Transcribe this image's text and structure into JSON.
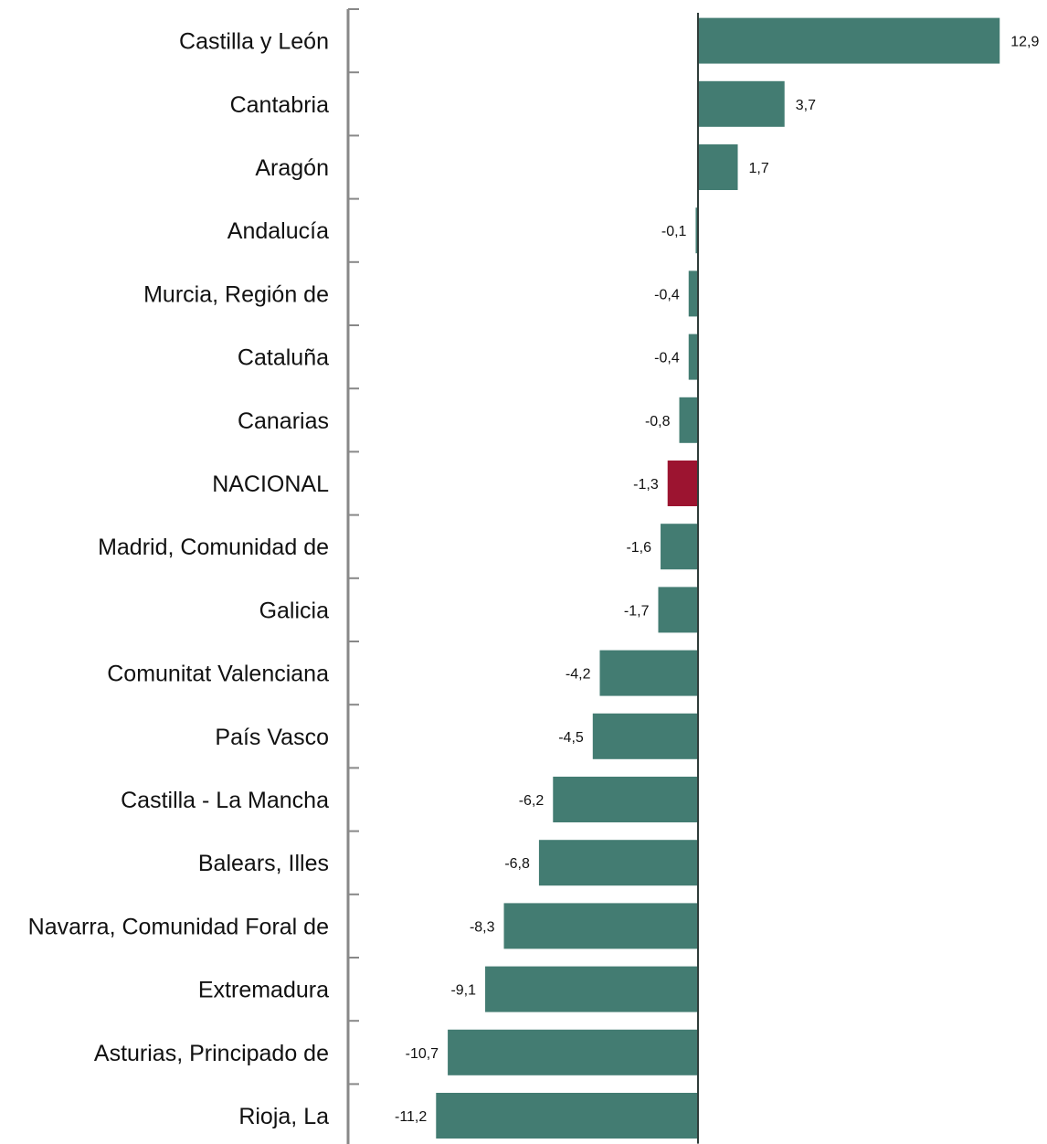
{
  "chart_data": {
    "type": "bar",
    "orientation": "horizontal",
    "title": "",
    "xlabel": "",
    "ylabel": "",
    "grid": false,
    "legend": "none",
    "xlim": [
      -14.9,
      14.9
    ],
    "categories": [
      "Castilla y León",
      "Cantabria",
      "Aragón",
      "Andalucía",
      "Murcia, Región de",
      "Cataluña",
      "Canarias",
      "NACIONAL",
      "Madrid, Comunidad de",
      "Galicia",
      "Comunitat Valenciana",
      "País Vasco",
      "Castilla - La Mancha",
      "Balears, Illes",
      "Navarra, Comunidad Foral de",
      "Extremadura",
      "Asturias, Principado de",
      "Rioja, La"
    ],
    "values": [
      12.9,
      3.7,
      1.7,
      -0.1,
      -0.4,
      -0.4,
      -0.8,
      -1.3,
      -1.6,
      -1.7,
      -4.2,
      -4.5,
      -6.2,
      -6.8,
      -8.3,
      -9.1,
      -10.7,
      -11.2
    ],
    "value_labels": [
      "12,9",
      "3,7",
      "1,7",
      "-0,1",
      "-0,4",
      "-0,4",
      "-0,8",
      "-1,3",
      "-1,6",
      "-1,7",
      "-4,2",
      "-4,5",
      "-6,2",
      "-6,8",
      "-8,3",
      "-9,1",
      "-10,7",
      "-11,2"
    ],
    "highlight_category": "NACIONAL",
    "colors": {
      "bar": "#437c72",
      "highlight": "#9c1430",
      "axis": "#888888"
    }
  }
}
